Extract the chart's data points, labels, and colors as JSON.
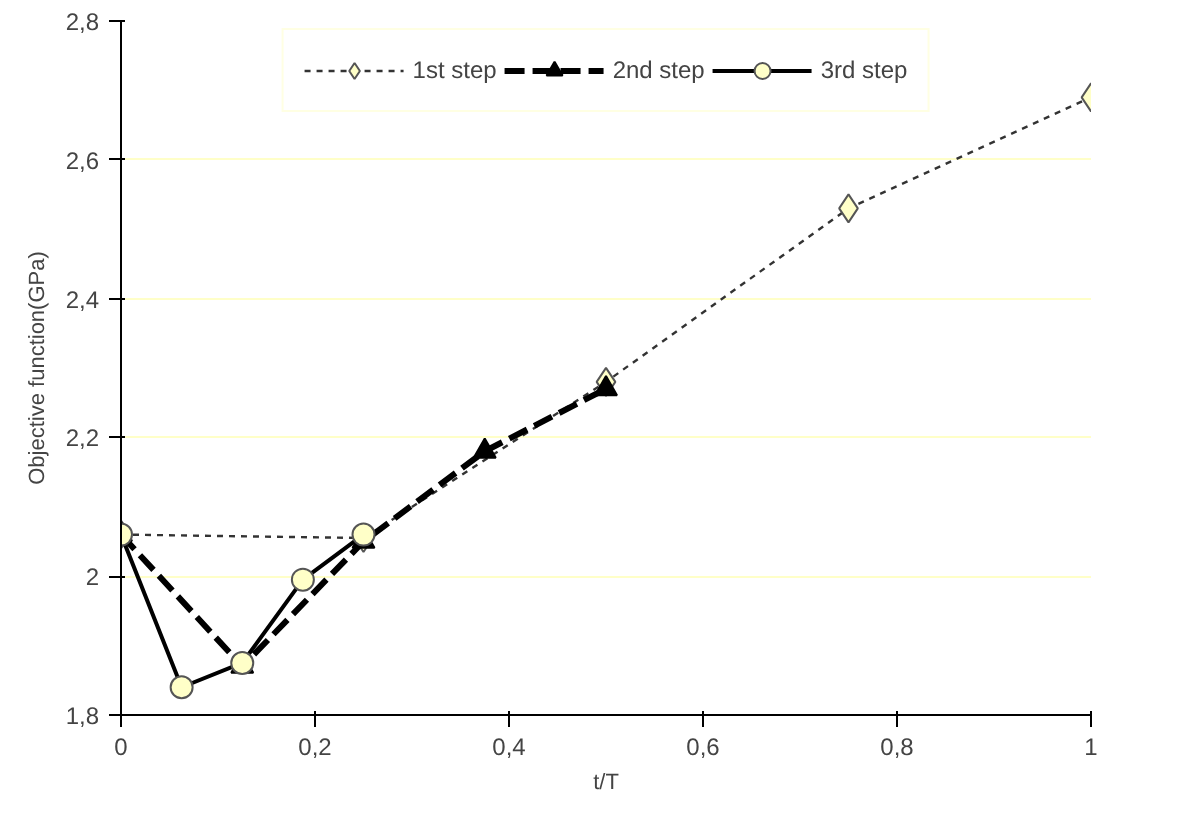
{
  "chart_data": {
    "type": "line",
    "xlabel": "t/T",
    "ylabel": "Objective function(GPa)",
    "xlim": [
      0,
      1
    ],
    "ylim": [
      1.8,
      2.8
    ],
    "xticks": [
      0,
      {
        "value": 0.2,
        "label": "0,2"
      },
      {
        "value": 0.4,
        "label": "0,4"
      },
      {
        "value": 0.6,
        "label": "0,6"
      },
      {
        "value": 0.8,
        "label": "0,8"
      },
      1
    ],
    "yticks": [
      {
        "value": 1.8,
        "label": "1,8"
      },
      2,
      {
        "value": 2.2,
        "label": "2,2"
      },
      {
        "value": 2.4,
        "label": "2,4"
      },
      {
        "value": 2.6,
        "label": "2,6"
      },
      {
        "value": 2.8,
        "label": "2,8"
      }
    ],
    "grid": "y",
    "legend": "top",
    "series": [
      {
        "name": "1st step",
        "color": "#333333",
        "marker": "diamond",
        "line_style": "dotted",
        "x": [
          0,
          0.25,
          0.5,
          0.75,
          1
        ],
        "values": [
          2.06,
          2.055,
          2.28,
          2.53,
          2.69
        ]
      },
      {
        "name": "2nd step",
        "color": "#000000",
        "marker": "triangle",
        "line_style": "dashed",
        "x": [
          0,
          0.125,
          0.25,
          0.375,
          0.5
        ],
        "values": [
          2.06,
          1.87,
          2.05,
          2.18,
          2.27
        ]
      },
      {
        "name": "3rd step",
        "color": "#000000",
        "marker": "circle",
        "line_style": "solid",
        "x": [
          0,
          0.0625,
          0.125,
          0.1875,
          0.25
        ],
        "values": [
          2.06,
          1.84,
          1.875,
          1.995,
          2.06
        ]
      }
    ]
  }
}
